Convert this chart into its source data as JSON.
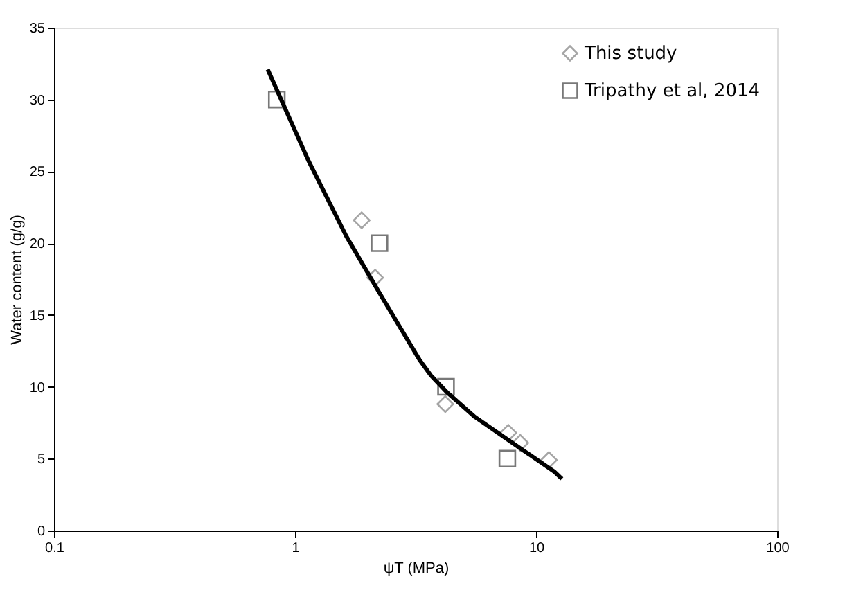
{
  "chart_data": {
    "type": "scatter",
    "xlabel": "ψT (MPa)",
    "ylabel": "Water content (g/g)",
    "log": "x",
    "xlim": [
      0.1,
      100
    ],
    "xticks": [
      0.1,
      1,
      10,
      100
    ],
    "ylim": [
      0,
      35
    ],
    "yticks": [
      0,
      5,
      10,
      15,
      20,
      25,
      30,
      35
    ],
    "grid": false,
    "legend": "top right",
    "series": [
      {
        "name": "This study",
        "marker": "diamond",
        "color": "#7f7f7f",
        "x": [
          1.89,
          2.15,
          4.2,
          7.67,
          8.6,
          11.3
        ],
        "values": [
          21.6,
          17.6,
          8.8,
          6.8,
          6.1,
          4.9
        ]
      },
      {
        "name": "Tripathy et al, 2014",
        "marker": "square",
        "color": "#404040",
        "x": [
          0.84,
          2.24,
          4.23,
          7.6
        ],
        "values": [
          30,
          20,
          10,
          5
        ]
      },
      {
        "type": "line",
        "marker": "none",
        "line_style": "solid",
        "color": "#000000",
        "x": [
          0.77,
          1.14,
          1.63,
          2.21,
          3.28,
          3.66,
          4.28,
          5.58,
          7.98,
          11.9,
          12.8
        ],
        "values": [
          32.1,
          25.7,
          20.5,
          16.7,
          11.9,
          10.8,
          9.6,
          7.9,
          6.1,
          4.1,
          3.6
        ]
      }
    ]
  }
}
